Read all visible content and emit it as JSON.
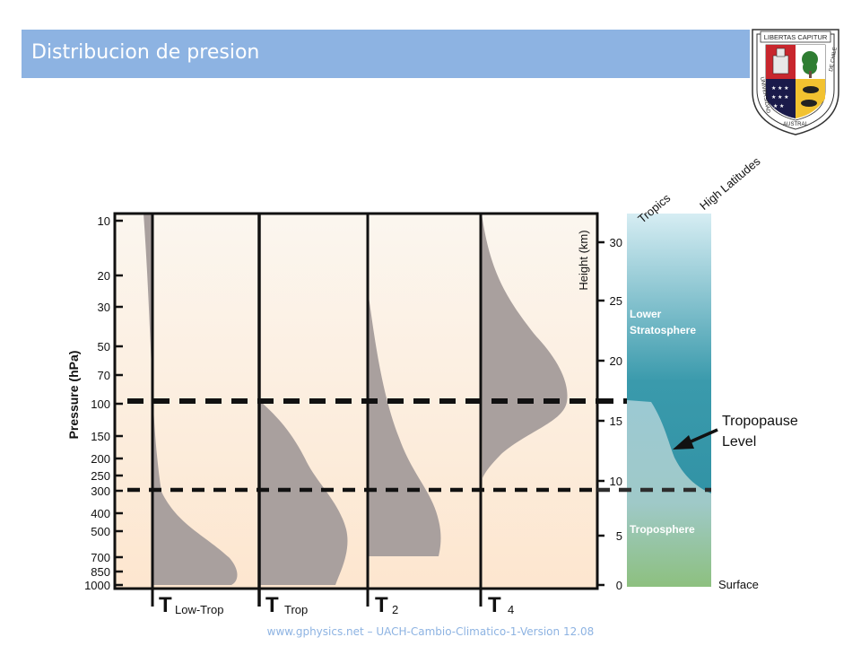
{
  "slide": {
    "title": "Distribucion de presion",
    "footer": "www.gphysics.net – UACH-Cambio-Climatico-1-Version 12.08"
  },
  "crest": {
    "top_text": "LIBERTAS CAPITUR",
    "band_left": "UNIVERSIDAD",
    "band_bottom": "AUSTRAL",
    "band_right": "DE CHILE"
  },
  "diagram": {
    "pressure_axis_label": "Pressure (hPa)",
    "pressure_ticks": [
      "10",
      "20",
      "30",
      "50",
      "70",
      "100",
      "150",
      "200",
      "250",
      "300",
      "400",
      "500",
      "700",
      "850",
      "1000"
    ],
    "height_axis_label": "Height (km)",
    "height_ticks": [
      "30",
      "25",
      "20",
      "15",
      "10",
      "5",
      "0"
    ],
    "column_headers": [
      "Tropics",
      "High Latitudes"
    ],
    "panels": [
      {
        "symbol": "T",
        "sub": "Low-Trop"
      },
      {
        "symbol": "T",
        "sub": "Trop"
      },
      {
        "symbol": "T",
        "sub": "2"
      },
      {
        "symbol": "T",
        "sub": "4"
      }
    ],
    "region_labels": {
      "stratosphere_line1": "Lower",
      "stratosphere_line2": "Stratosphere",
      "troposphere": "Troposphere",
      "surface": "Surface",
      "tropopause_line1": "Tropopause",
      "tropopause_line2": "Level"
    },
    "colors": {
      "weighting_fill": "#a9a09e",
      "stratosphere_top": "#d6edf3",
      "stratosphere_bottom": "#2b8da0",
      "troposphere": "#a8cfd8",
      "surface_green": "#8dc07f",
      "title_bar": "#8db3e2"
    }
  }
}
